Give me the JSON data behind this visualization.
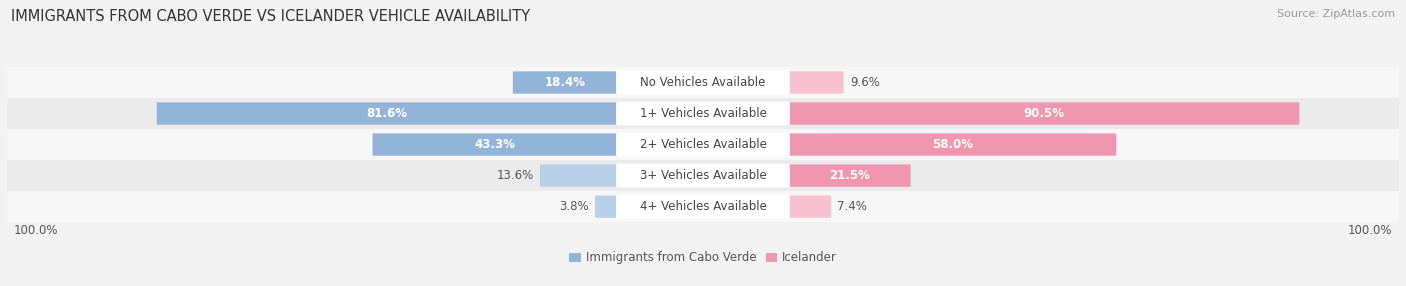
{
  "title": "IMMIGRANTS FROM CABO VERDE VS ICELANDER VEHICLE AVAILABILITY",
  "source": "Source: ZipAtlas.com",
  "categories": [
    "No Vehicles Available",
    "1+ Vehicles Available",
    "2+ Vehicles Available",
    "3+ Vehicles Available",
    "4+ Vehicles Available"
  ],
  "cabo_verde_values": [
    18.4,
    81.6,
    43.3,
    13.6,
    3.8
  ],
  "icelander_values": [
    9.6,
    90.5,
    58.0,
    21.5,
    7.4
  ],
  "cabo_verde_color": "#92b4d8",
  "icelander_color": "#f096b0",
  "cabo_verde_color_light": "#b8cfe8",
  "icelander_color_light": "#f8c0d0",
  "cabo_verde_label": "Immigrants from Cabo Verde",
  "icelander_label": "Icelander",
  "max_value": 100.0,
  "background_color": "#f2f2f2",
  "row_bg_odd": "#ebebeb",
  "row_bg_even": "#f7f7f7",
  "title_fontsize": 10.5,
  "bar_label_fontsize": 8.5,
  "source_fontsize": 8,
  "cat_label_fontsize": 8.5,
  "footer_label": "100.0%",
  "label_threshold": 15
}
